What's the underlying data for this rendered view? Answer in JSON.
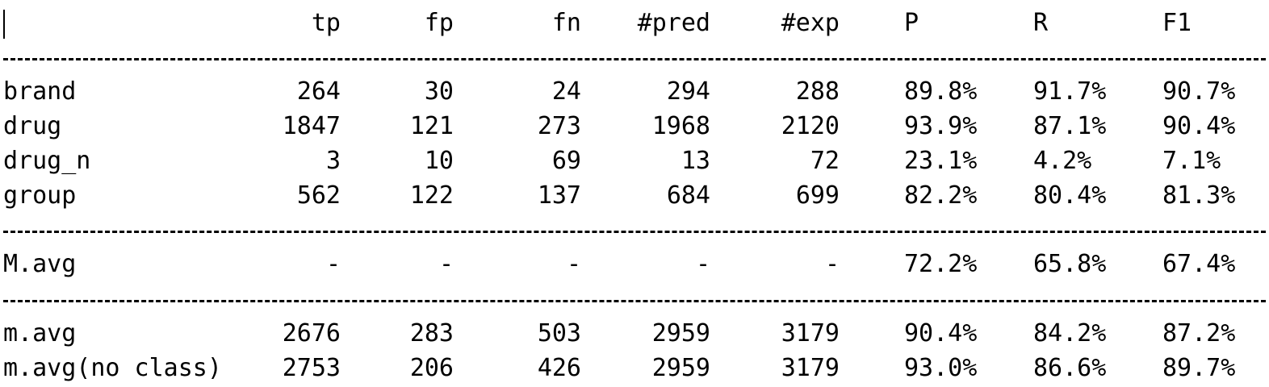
{
  "header": {
    "tp": "tp",
    "fp": "fp",
    "fn": "fn",
    "pred": "#pred",
    "exp": "#exp",
    "p": "P",
    "r": "R",
    "f1": "F1"
  },
  "classes": [
    {
      "label": "brand",
      "tp": "264",
      "fp": "30",
      "fn": "24",
      "pred": "294",
      "exp": "288",
      "p": "89.8%",
      "r": "91.7%",
      "f1": "90.7%"
    },
    {
      "label": "drug",
      "tp": "1847",
      "fp": "121",
      "fn": "273",
      "pred": "1968",
      "exp": "2120",
      "p": "93.9%",
      "r": "87.1%",
      "f1": "90.4%"
    },
    {
      "label": "drug_n",
      "tp": "3",
      "fp": "10",
      "fn": "69",
      "pred": "13",
      "exp": "72",
      "p": "23.1%",
      "r": "4.2%",
      "f1": "7.1%"
    },
    {
      "label": "group",
      "tp": "562",
      "fp": "122",
      "fn": "137",
      "pred": "684",
      "exp": "699",
      "p": "82.2%",
      "r": "80.4%",
      "f1": "81.3%"
    }
  ],
  "macro": {
    "label": "M.avg",
    "tp": "-",
    "fp": "-",
    "fn": "-",
    "pred": "-",
    "exp": "-",
    "p": "72.2%",
    "r": "65.8%",
    "f1": "67.4%"
  },
  "micro": [
    {
      "label": "m.avg",
      "tp": "2676",
      "fp": "283",
      "fn": "503",
      "pred": "2959",
      "exp": "3179",
      "p": "90.4%",
      "r": "84.2%",
      "f1": "87.2%"
    },
    {
      "label": "m.avg(no class)",
      "tp": "2753",
      "fp": "206",
      "fn": "426",
      "pred": "2959",
      "exp": "3179",
      "p": "93.0%",
      "r": "86.6%",
      "f1": "89.7%"
    }
  ]
}
